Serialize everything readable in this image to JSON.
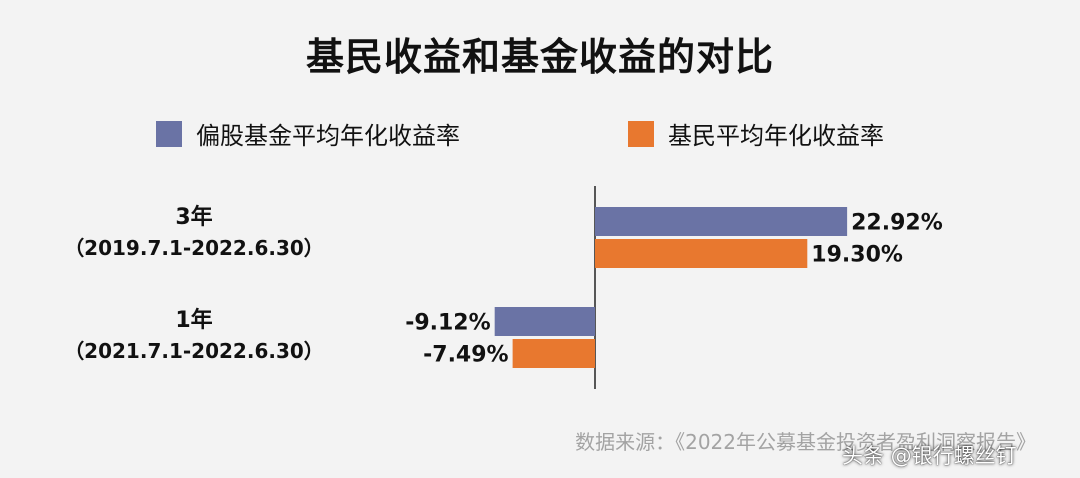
{
  "chart_data": {
    "type": "bar",
    "orientation": "horizontal",
    "title": "基民收益和基金收益的对比",
    "categories": [
      {
        "name": "3年",
        "period": "（2019.7.1-2022.6.30）"
      },
      {
        "name": "1年",
        "period": "（2021.7.1-2022.6.30）"
      }
    ],
    "series": [
      {
        "name": "偏股基金平均年化收益率",
        "color": "#6a73a5",
        "values": [
          22.92,
          -9.12
        ],
        "labels": [
          "22.92%",
          "-9.12%"
        ]
      },
      {
        "name": "基民平均年化收益率",
        "color": "#e8782f",
        "values": [
          19.3,
          -7.49
        ],
        "labels": [
          "19.30%",
          "-7.49%"
        ]
      }
    ],
    "xlim": [
      -12,
      30
    ],
    "legend_position": "top",
    "grid": false
  },
  "source_text": "数据来源：《2022年公募基金投资者盈利洞察报告》",
  "watermark_text": "头条 @银行螺丝钉"
}
